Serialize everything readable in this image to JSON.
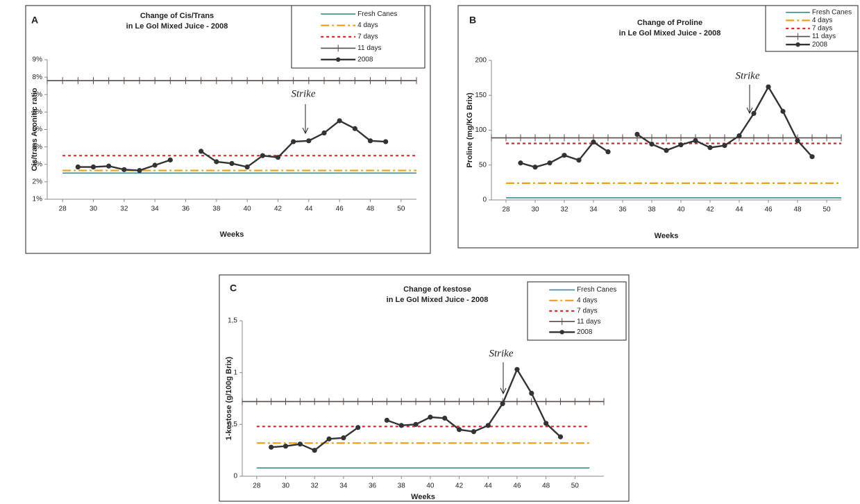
{
  "chart_data": [
    {
      "type": "line",
      "label": "A",
      "title": "Change of Cis/Trans",
      "subtitle": "in Le Gol Mixed Juice - 2008",
      "xlabel": "Weeks",
      "ylabel": "Cis/trans Aconitic ratio",
      "annotation": "Strike",
      "xlim": [
        27,
        51
      ],
      "xticks": [
        28,
        30,
        32,
        34,
        36,
        38,
        40,
        42,
        44,
        46,
        48,
        50
      ],
      "ylim": [
        1,
        9
      ],
      "yticks": [
        {
          "value": 1,
          "label": "1%"
        },
        {
          "value": 2,
          "label": "2%"
        },
        {
          "value": 3,
          "label": "3%"
        },
        {
          "value": 4,
          "label": "4%"
        },
        {
          "value": 5,
          "label": "5%"
        },
        {
          "value": 6,
          "label": "6%"
        },
        {
          "value": 7,
          "label": "7%"
        },
        {
          "value": 8,
          "label": "8%"
        },
        {
          "value": 9,
          "label": "9%"
        }
      ],
      "series": [
        {
          "name": "Fresh Canes",
          "color": "#2e9090",
          "linestyle": "solid",
          "marker": null,
          "x": [
            28,
            51
          ],
          "values": [
            2.5,
            2.5
          ]
        },
        {
          "name": "4 days",
          "color": "#e8a21c",
          "linestyle": "dashdot",
          "marker": null,
          "x": [
            28,
            51
          ],
          "values": [
            2.65,
            2.65
          ]
        },
        {
          "name": "7 days",
          "color": "#d42a2a",
          "linestyle": "dotted",
          "marker": null,
          "x": [
            28,
            51
          ],
          "values": [
            3.5,
            3.5
          ]
        },
        {
          "name": "11 days",
          "color": "#5a4a4a",
          "linestyle": "solid",
          "marker": "plus",
          "x": [
            27,
            28,
            29,
            30,
            31,
            32,
            33,
            34,
            35,
            36,
            37,
            38,
            39,
            40,
            41,
            42,
            43,
            44,
            45,
            46,
            47,
            48,
            49,
            50,
            51
          ],
          "values": [
            7.8,
            7.8,
            7.8,
            7.8,
            7.8,
            7.8,
            7.8,
            7.8,
            7.8,
            7.8,
            7.8,
            7.8,
            7.8,
            7.8,
            7.8,
            7.8,
            7.8,
            7.8,
            7.8,
            7.8,
            7.8,
            7.8,
            7.8,
            7.8,
            7.8
          ]
        },
        {
          "name": "2008",
          "color": "#333333",
          "linestyle": "bold",
          "marker": "circle",
          "x": [
            29,
            30,
            31,
            32,
            33,
            34,
            35,
            36,
            37,
            38,
            39,
            40,
            41,
            42,
            43,
            44,
            45,
            46,
            47,
            48,
            49
          ],
          "values": [
            2.85,
            2.85,
            2.9,
            2.7,
            2.65,
            2.95,
            3.25,
            null,
            3.75,
            3.15,
            3.05,
            2.85,
            3.5,
            3.4,
            4.3,
            4.35,
            4.8,
            5.5,
            5.05,
            4.35,
            4.3
          ]
        }
      ]
    },
    {
      "type": "line",
      "label": "B",
      "title": "Change of Proline",
      "subtitle": "in Le Gol Mixed Juice - 2008",
      "xlabel": "Weeks",
      "ylabel": "Proline (mg/KG Brix)",
      "annotation": "Strike",
      "xlim": [
        27,
        51
      ],
      "xticks": [
        28,
        30,
        32,
        34,
        36,
        38,
        40,
        42,
        44,
        46,
        48,
        50
      ],
      "ylim": [
        0,
        200
      ],
      "yticks": [
        0,
        50,
        100,
        150,
        200
      ],
      "series": [
        {
          "name": "Fresh Canes",
          "color": "#2e9090",
          "linestyle": "solid",
          "marker": null,
          "x": [
            28,
            51
          ],
          "values": [
            3,
            3
          ]
        },
        {
          "name": "4 days",
          "color": "#e8a21c",
          "linestyle": "dashdot",
          "marker": null,
          "x": [
            28,
            51
          ],
          "values": [
            24,
            24
          ]
        },
        {
          "name": "7 days",
          "color": "#d42a2a",
          "linestyle": "dotted",
          "marker": null,
          "x": [
            28,
            51
          ],
          "values": [
            81,
            81
          ]
        },
        {
          "name": "11 days",
          "color": "#5a4a4a",
          "linestyle": "solid",
          "marker": "plus",
          "x": [
            27,
            28,
            29,
            30,
            31,
            32,
            33,
            34,
            35,
            36,
            37,
            38,
            39,
            40,
            41,
            42,
            43,
            44,
            45,
            46,
            47,
            48,
            49,
            50,
            51
          ],
          "values": [
            89,
            89,
            89,
            89,
            89,
            89,
            89,
            89,
            89,
            89,
            89,
            89,
            89,
            89,
            89,
            89,
            89,
            89,
            89,
            89,
            89,
            89,
            89,
            89,
            89
          ]
        },
        {
          "name": "2008",
          "color": "#333333",
          "linestyle": "bold",
          "marker": "circle",
          "x": [
            29,
            30,
            31,
            32,
            33,
            34,
            35,
            36,
            37,
            38,
            39,
            40,
            41,
            42,
            43,
            44,
            45,
            46,
            47,
            48,
            49
          ],
          "values": [
            53,
            47,
            53,
            64,
            57,
            83,
            69,
            null,
            94,
            80,
            71,
            79,
            85,
            75,
            78,
            92,
            124,
            162,
            127,
            85,
            62
          ]
        }
      ]
    },
    {
      "type": "line",
      "label": "C",
      "title": "Change of kestose",
      "subtitle": "in Le Gol Mixed Juice - 2008",
      "xlabel": "Weeks",
      "ylabel": "1-kestose (g/100g Brix)",
      "annotation": "Strike",
      "xlim": [
        27,
        52
      ],
      "xticks": [
        28,
        30,
        32,
        34,
        36,
        38,
        40,
        42,
        44,
        46,
        48,
        50
      ],
      "ylim": [
        0,
        1.5
      ],
      "yticks": [
        0,
        {
          "value": 0.5,
          "label": "0,5"
        },
        1,
        {
          "value": 1.5,
          "label": "1,5"
        }
      ],
      "series": [
        {
          "name": "Fresh Canes",
          "color": "#2e9090",
          "linestyle": "solid",
          "marker": null,
          "x": [
            28,
            51
          ],
          "values": [
            0.08,
            0.08
          ]
        },
        {
          "name": "4 days",
          "color": "#e8a21c",
          "linestyle": "dashdot",
          "marker": null,
          "x": [
            28,
            51
          ],
          "values": [
            0.32,
            0.32
          ]
        },
        {
          "name": "7 days",
          "color": "#d42a2a",
          "linestyle": "dotted",
          "marker": null,
          "x": [
            28,
            51
          ],
          "values": [
            0.48,
            0.48
          ]
        },
        {
          "name": "11 days",
          "color": "#5a4a4a",
          "linestyle": "solid",
          "marker": "plus",
          "x": [
            27,
            28,
            29,
            30,
            31,
            32,
            33,
            34,
            35,
            36,
            37,
            38,
            39,
            40,
            41,
            42,
            43,
            44,
            45,
            46,
            47,
            48,
            49,
            50,
            51,
            52
          ],
          "values": [
            0.72,
            0.72,
            0.72,
            0.72,
            0.72,
            0.72,
            0.72,
            0.72,
            0.72,
            0.72,
            0.72,
            0.72,
            0.72,
            0.72,
            0.72,
            0.72,
            0.72,
            0.72,
            0.72,
            0.72,
            0.72,
            0.72,
            0.72,
            0.72,
            0.72,
            0.72
          ]
        },
        {
          "name": "2008",
          "color": "#333333",
          "linestyle": "bold",
          "marker": "circle",
          "x": [
            29,
            30,
            31,
            32,
            33,
            34,
            35,
            36,
            37,
            38,
            39,
            40,
            41,
            42,
            43,
            44,
            45,
            46,
            47,
            48,
            49
          ],
          "values": [
            0.28,
            0.29,
            0.31,
            0.25,
            0.36,
            0.37,
            0.47,
            null,
            0.54,
            0.49,
            0.5,
            0.57,
            0.56,
            0.45,
            0.43,
            0.49,
            0.7,
            1.03,
            0.8,
            0.51,
            0.38
          ]
        }
      ]
    }
  ]
}
